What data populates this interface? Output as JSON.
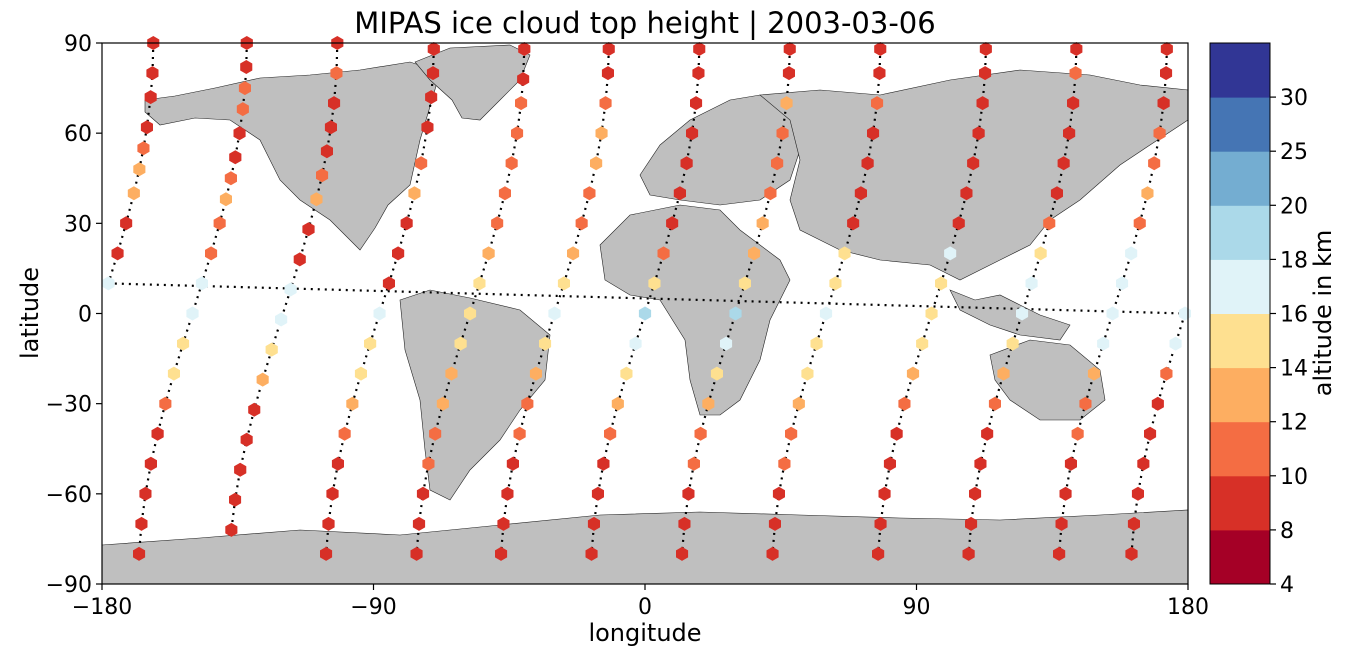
{
  "chart_data": {
    "type": "scatter",
    "title": "MIPAS ice cloud top height | 2003-03-06",
    "xlabel": "longitude",
    "ylabel": "latitude",
    "xlim": [
      -180,
      180
    ],
    "ylim": [
      -90,
      90
    ],
    "x_ticks": [
      "−180",
      "−90",
      "0",
      "90",
      "180"
    ],
    "x_tick_values": [
      -180,
      -90,
      0,
      90,
      180
    ],
    "y_ticks": [
      "−90",
      "−60",
      "−30",
      "0",
      "30",
      "60",
      "90"
    ],
    "y_tick_values": [
      -90,
      -60,
      -30,
      0,
      30,
      60,
      90
    ],
    "grid": false,
    "colorbar": {
      "label": "altitude in km",
      "boundaries": [
        4,
        8,
        10,
        12,
        14,
        16,
        18,
        20,
        25,
        30
      ],
      "tick_labels": [
        "4",
        "8",
        "10",
        "12",
        "14",
        "16",
        "18",
        "20",
        "25",
        "30"
      ],
      "colors": [
        "#a50026",
        "#d73027",
        "#f46d43",
        "#fdae61",
        "#fee090",
        "#e0f3f8",
        "#abd9e9",
        "#74add1",
        "#4575b4",
        "#313695"
      ]
    },
    "land_color": "#bfbfbf",
    "marker": "hexagon",
    "orbit_tracks": [
      {
        "lon0": 179,
        "points": [
          [
            90,
            8
          ],
          [
            80,
            9
          ],
          [
            72,
            9
          ],
          [
            62,
            9
          ],
          [
            55,
            11
          ],
          [
            48,
            12
          ],
          [
            40,
            13
          ],
          [
            30,
            9
          ],
          [
            20,
            8
          ],
          [
            10,
            16
          ],
          [
            0,
            17
          ],
          [
            -10,
            17
          ],
          [
            -20,
            11
          ],
          [
            -30,
            9
          ],
          [
            -40,
            8
          ],
          [
            -50,
            9
          ],
          [
            -60,
            8
          ],
          [
            -70,
            8
          ],
          [
            -80,
            8
          ]
        ]
      },
      {
        "lon0": -150,
        "points": [
          [
            90,
            8
          ],
          [
            82,
            8
          ],
          [
            75,
            10
          ],
          [
            68,
            11
          ],
          [
            60,
            8
          ],
          [
            52,
            8
          ],
          [
            45,
            10
          ],
          [
            38,
            12
          ],
          [
            30,
            11
          ],
          [
            20,
            10
          ],
          [
            10,
            17
          ],
          [
            0,
            16
          ],
          [
            -10,
            15
          ],
          [
            -20,
            15
          ],
          [
            -30,
            10
          ],
          [
            -40,
            9
          ],
          [
            -50,
            8
          ],
          [
            -60,
            8
          ],
          [
            -70,
            8
          ],
          [
            -80,
            9
          ]
        ]
      },
      {
        "lon0": -120,
        "points": [
          [
            90,
            8
          ],
          [
            80,
            11
          ],
          [
            70,
            9
          ],
          [
            62,
            8
          ],
          [
            54,
            8
          ],
          [
            46,
            11
          ],
          [
            38,
            12
          ],
          [
            28,
            8
          ],
          [
            18,
            8
          ],
          [
            8,
            16
          ],
          [
            -2,
            17
          ],
          [
            -12,
            15
          ],
          [
            -22,
            12
          ],
          [
            -32,
            9
          ],
          [
            -42,
            8
          ],
          [
            -52,
            8
          ],
          [
            -62,
            9
          ],
          [
            -72,
            8
          ]
        ]
      },
      {
        "lon0": -88,
        "points": [
          [
            88,
            8
          ],
          [
            80,
            9
          ],
          [
            72,
            8
          ],
          [
            62,
            8
          ],
          [
            50,
            11
          ],
          [
            40,
            12
          ],
          [
            30,
            8
          ],
          [
            20,
            9
          ],
          [
            10,
            8
          ],
          [
            0,
            16
          ],
          [
            -10,
            15
          ],
          [
            -20,
            15
          ],
          [
            -30,
            12
          ],
          [
            -40,
            11
          ],
          [
            -50,
            9
          ],
          [
            -60,
            8
          ],
          [
            -70,
            8
          ],
          [
            -80,
            8
          ]
        ]
      },
      {
        "lon0": -58,
        "points": [
          [
            88,
            9
          ],
          [
            78,
            8
          ],
          [
            70,
            10
          ],
          [
            60,
            11
          ],
          [
            50,
            10
          ],
          [
            40,
            11
          ],
          [
            30,
            11
          ],
          [
            20,
            12
          ],
          [
            10,
            15
          ],
          [
            0,
            15
          ],
          [
            -10,
            14
          ],
          [
            -20,
            13
          ],
          [
            -30,
            12
          ],
          [
            -40,
            11
          ],
          [
            -50,
            10
          ],
          [
            -60,
            9
          ],
          [
            -70,
            8
          ],
          [
            -80,
            8
          ]
        ]
      },
      {
        "lon0": -30,
        "points": [
          [
            88,
            8
          ],
          [
            80,
            8
          ],
          [
            70,
            11
          ],
          [
            60,
            12
          ],
          [
            50,
            12
          ],
          [
            40,
            11
          ],
          [
            30,
            10
          ],
          [
            20,
            12
          ],
          [
            10,
            14
          ],
          [
            0,
            16
          ],
          [
            -10,
            15
          ],
          [
            -20,
            13
          ],
          [
            -30,
            11
          ],
          [
            -40,
            10
          ],
          [
            -50,
            9
          ],
          [
            -60,
            9
          ],
          [
            -70,
            8
          ],
          [
            -80,
            8
          ]
        ]
      },
      {
        "lon0": 0,
        "points": [
          [
            88,
            8
          ],
          [
            80,
            8
          ],
          [
            70,
            9
          ],
          [
            60,
            9
          ],
          [
            50,
            8
          ],
          [
            40,
            9
          ],
          [
            30,
            9
          ],
          [
            20,
            11
          ],
          [
            10,
            14
          ],
          [
            0,
            18
          ],
          [
            -10,
            16
          ],
          [
            -20,
            15
          ],
          [
            -30,
            12
          ],
          [
            -40,
            10
          ],
          [
            -50,
            9
          ],
          [
            -60,
            8
          ],
          [
            -70,
            8
          ],
          [
            -80,
            8
          ]
        ]
      },
      {
        "lon0": 30,
        "points": [
          [
            88,
            8
          ],
          [
            80,
            9
          ],
          [
            70,
            12
          ],
          [
            60,
            11
          ],
          [
            50,
            10
          ],
          [
            40,
            11
          ],
          [
            30,
            12
          ],
          [
            20,
            13
          ],
          [
            10,
            15
          ],
          [
            0,
            18
          ],
          [
            -10,
            17
          ],
          [
            -20,
            15
          ],
          [
            -30,
            12
          ],
          [
            -40,
            11
          ],
          [
            -50,
            10
          ],
          [
            -60,
            9
          ],
          [
            -70,
            8
          ],
          [
            -80,
            8
          ]
        ]
      },
      {
        "lon0": 60,
        "points": [
          [
            88,
            9
          ],
          [
            80,
            8
          ],
          [
            70,
            10
          ],
          [
            60,
            9
          ],
          [
            50,
            9
          ],
          [
            40,
            9
          ],
          [
            30,
            8
          ],
          [
            20,
            15
          ],
          [
            10,
            14
          ],
          [
            0,
            16
          ],
          [
            -10,
            15
          ],
          [
            -20,
            14
          ],
          [
            -30,
            12
          ],
          [
            -40,
            11
          ],
          [
            -50,
            10
          ],
          [
            -60,
            8
          ],
          [
            -70,
            8
          ],
          [
            -80,
            9
          ]
        ]
      },
      {
        "lon0": 95,
        "points": [
          [
            88,
            8
          ],
          [
            80,
            9
          ],
          [
            70,
            8
          ],
          [
            60,
            8
          ],
          [
            50,
            8
          ],
          [
            40,
            9
          ],
          [
            30,
            8
          ],
          [
            20,
            16
          ],
          [
            10,
            15
          ],
          [
            0,
            15
          ],
          [
            -10,
            14
          ],
          [
            -20,
            13
          ],
          [
            -30,
            11
          ],
          [
            -40,
            9
          ],
          [
            -50,
            8
          ],
          [
            -60,
            8
          ],
          [
            -70,
            8
          ],
          [
            -80,
            9
          ]
        ]
      },
      {
        "lon0": 125,
        "points": [
          [
            88,
            8
          ],
          [
            80,
            11
          ],
          [
            70,
            8
          ],
          [
            60,
            8
          ],
          [
            50,
            9
          ],
          [
            40,
            9
          ],
          [
            30,
            10
          ],
          [
            20,
            15
          ],
          [
            10,
            16
          ],
          [
            0,
            17
          ],
          [
            -10,
            15
          ],
          [
            -20,
            12
          ],
          [
            -30,
            10
          ],
          [
            -40,
            9
          ],
          [
            -50,
            8
          ],
          [
            -60,
            9
          ],
          [
            -70,
            8
          ],
          [
            -80,
            8
          ]
        ]
      },
      {
        "lon0": 155,
        "points": [
          [
            88,
            9
          ],
          [
            80,
            8
          ],
          [
            70,
            9
          ],
          [
            60,
            11
          ],
          [
            50,
            10
          ],
          [
            40,
            12
          ],
          [
            30,
            11
          ],
          [
            20,
            16
          ],
          [
            10,
            17
          ],
          [
            0,
            17
          ],
          [
            -10,
            16
          ],
          [
            -20,
            12
          ],
          [
            -30,
            11
          ],
          [
            -40,
            10
          ],
          [
            -50,
            9
          ],
          [
            -60,
            8
          ],
          [
            -70,
            8
          ],
          [
            -80,
            9
          ]
        ]
      }
    ]
  }
}
